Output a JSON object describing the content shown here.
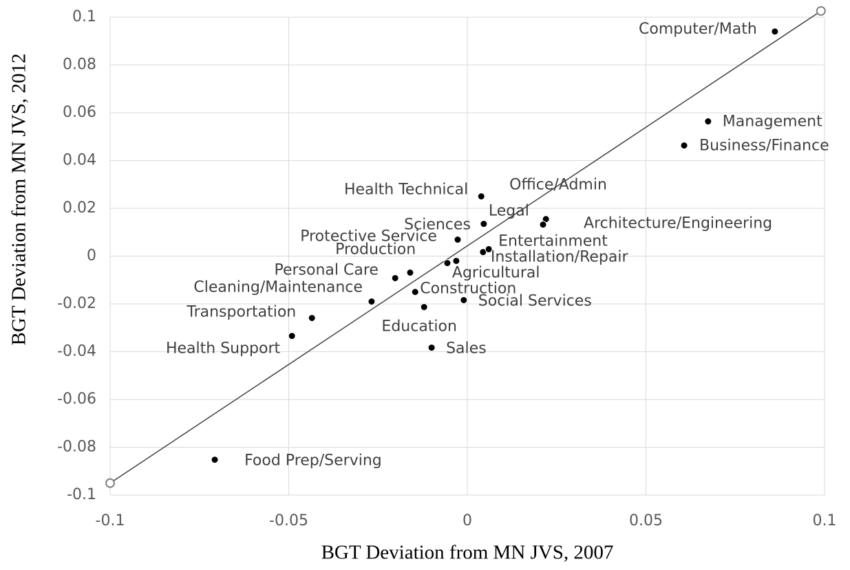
{
  "chart_data": {
    "type": "scatter",
    "xlabel": "BGT Deviation from MN JVS, 2007",
    "ylabel": "BGT Deviation from MN JVS, 2012",
    "xlim": [
      -0.1,
      0.1
    ],
    "ylim": [
      -0.1,
      0.1
    ],
    "xticks": [
      -0.1,
      -0.05,
      0,
      0.05,
      0.1
    ],
    "yticks": [
      -0.1,
      -0.08,
      -0.06,
      -0.04,
      -0.02,
      0,
      0.02,
      0.04,
      0.06,
      0.08,
      0.1
    ],
    "grid": true,
    "series": [
      {
        "color": "#000000",
        "labels": [
          "Computer/Math",
          "Management",
          "Business/Finance",
          "Health Technical",
          "Office/Admin",
          "Architecture/Engineering",
          "Legal",
          "Sciences",
          "Protective Service",
          "Production",
          "Personal Care",
          "Construction",
          "Cleaning/Maintenance",
          "Education",
          "Social Services",
          "Transportation",
          "Health Support",
          "Sales",
          "Food Prep/Serving",
          "Agricultural",
          "Installation/Repair",
          "Entertainment"
        ],
        "x": [
          0.0861,
          0.0674,
          0.0607,
          0.0039,
          0.022,
          0.0212,
          0.0046,
          -0.0031,
          -0.0027,
          -0.0202,
          -0.016,
          -0.0146,
          -0.0268,
          -0.0121,
          -0.001,
          -0.0435,
          -0.0491,
          -0.01,
          -0.0707,
          -0.0056,
          0.0044,
          0.006
        ],
        "values": [
          0.094,
          0.0564,
          0.0463,
          0.025,
          0.0155,
          0.0132,
          0.0135,
          -0.002,
          0.0069,
          -0.0092,
          -0.0069,
          -0.015,
          -0.019,
          -0.0213,
          -0.0184,
          -0.0259,
          -0.0334,
          -0.0383,
          -0.0852,
          -0.0029,
          0.0017,
          0.0029
        ]
      }
    ],
    "reference_line": {
      "color": "#404040",
      "x": [
        -0.1,
        0.099
      ],
      "values": [
        -0.095,
        0.1026
      ]
    }
  }
}
